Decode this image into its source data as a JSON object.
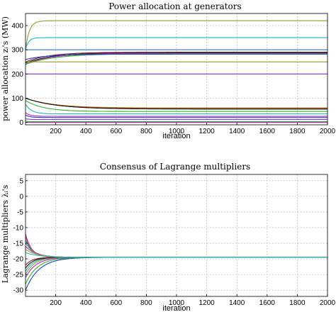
{
  "chart_data": [
    {
      "type": "line",
      "title": "Power allocation at generators",
      "ylabel": "power allocation zᵢ's (MW)",
      "xlabel": "iteration",
      "xlim": [
        0,
        2000
      ],
      "ylim": [
        -10,
        450
      ],
      "xticks": [
        200,
        400,
        600,
        800,
        1000,
        1200,
        1400,
        1600,
        1800,
        2000
      ],
      "xtick_labels": [
        "200",
        "400",
        "600",
        "800",
        "1000",
        "1200",
        "1400",
        "1600",
        "1800",
        "2000"
      ],
      "yticks": [
        0,
        100,
        200,
        300,
        400
      ],
      "ytick_labels": [
        "0",
        "100",
        "200",
        "300",
        "400"
      ],
      "grid": true,
      "series": [
        {
          "color": "#9b9b2a",
          "start": 300,
          "final": 420,
          "tau": 25
        },
        {
          "color": "#1fb8b8",
          "start": 300,
          "final": 350,
          "tau": 20
        },
        {
          "color": "#2f6fdb",
          "start": 300,
          "final": 300,
          "tau": 20
        },
        {
          "color": "#7a1f1f",
          "start": 250,
          "final": 290,
          "tau": 160
        },
        {
          "color": "#111111",
          "start": 245,
          "final": 288,
          "tau": 180
        },
        {
          "color": "#c01fc0",
          "start": 240,
          "final": 286,
          "tau": 170
        },
        {
          "color": "#2ab82a",
          "start": 240,
          "final": 284,
          "tau": 200
        },
        {
          "color": "#1f3fbf",
          "start": 260,
          "final": 282,
          "tau": 150
        },
        {
          "color": "#9b9b2a",
          "start": 250,
          "final": 250,
          "tau": 20
        },
        {
          "color": "#8a2be2",
          "start": 200,
          "final": 200,
          "tau": 10
        },
        {
          "color": "#9b9b2a",
          "start": 100,
          "final": 60,
          "tau": 180
        },
        {
          "color": "#d04a1a",
          "start": 100,
          "final": 57,
          "tau": 200
        },
        {
          "color": "#111111",
          "start": 100,
          "final": 55,
          "tau": 200
        },
        {
          "color": "#2ab82a",
          "start": 90,
          "final": 45,
          "tau": 120
        },
        {
          "color": "#1fb8b8",
          "start": 75,
          "final": 35,
          "tau": 40
        },
        {
          "color": "#c01fc0",
          "start": 40,
          "final": 25,
          "tau": 30
        },
        {
          "color": "#1f3fbf",
          "start": 30,
          "final": 20,
          "tau": 30
        },
        {
          "color": "#8a2be2",
          "start": 15,
          "final": 12,
          "tau": 20
        },
        {
          "color": "#2ab82a",
          "start": 5,
          "final": 3,
          "tau": 20
        },
        {
          "color": "#c01fc0",
          "start": 0,
          "final": 0,
          "tau": 20
        }
      ]
    },
    {
      "type": "line",
      "title": "Consensus of Lagrange multipliers",
      "ylabel": "Lagrange multipliers λᵢ's",
      "xlabel": "iteration",
      "xlim": [
        0,
        2000
      ],
      "ylim": [
        -32,
        7
      ],
      "xticks": [
        200,
        400,
        600,
        800,
        1000,
        1200,
        1400,
        1600,
        1800,
        2000
      ],
      "xtick_labels": [
        "200",
        "400",
        "600",
        "800",
        "1000",
        "1200",
        "1400",
        "1600",
        "1800",
        "2000"
      ],
      "yticks": [
        5,
        0,
        -5,
        -10,
        -15,
        -20,
        -25,
        -30
      ],
      "ytick_labels": [
        "5",
        "0",
        "-5",
        "-10",
        "-15",
        "-20",
        "-25",
        "-30"
      ],
      "grid": true,
      "series": [
        {
          "color": "#1f3fbf",
          "start": -30,
          "final": -19.5,
          "tau": 90
        },
        {
          "color": "#2ab82a",
          "start": -28,
          "final": -19.5,
          "tau": 80
        },
        {
          "color": "#c01fc0",
          "start": -26,
          "final": -19.5,
          "tau": 70
        },
        {
          "color": "#9b9b2a",
          "start": -25,
          "final": -19.5,
          "tau": 60
        },
        {
          "color": "#1fb8b8",
          "start": -24,
          "final": -19.5,
          "tau": 55
        },
        {
          "color": "#111111",
          "start": -23,
          "final": -19.5,
          "tau": 50
        },
        {
          "color": "#7a1f1f",
          "start": -22,
          "final": -19.5,
          "tau": 45
        },
        {
          "color": "#8a2be2",
          "start": -12,
          "final": -19.5,
          "tau": 40
        },
        {
          "color": "#d04a1a",
          "start": -13,
          "final": -19.5,
          "tau": 45
        },
        {
          "color": "#2f6fdb",
          "start": -14,
          "final": -19.5,
          "tau": 50
        },
        {
          "color": "#2ab82a",
          "start": -15,
          "final": -19.5,
          "tau": 60
        },
        {
          "color": "#c01fc0",
          "start": -16,
          "final": -19.5,
          "tau": 70
        },
        {
          "color": "#9b9b2a",
          "start": -17,
          "final": -19.5,
          "tau": 80
        },
        {
          "color": "#1fb8b8",
          "start": -18,
          "final": -19.5,
          "tau": 90
        }
      ]
    }
  ]
}
